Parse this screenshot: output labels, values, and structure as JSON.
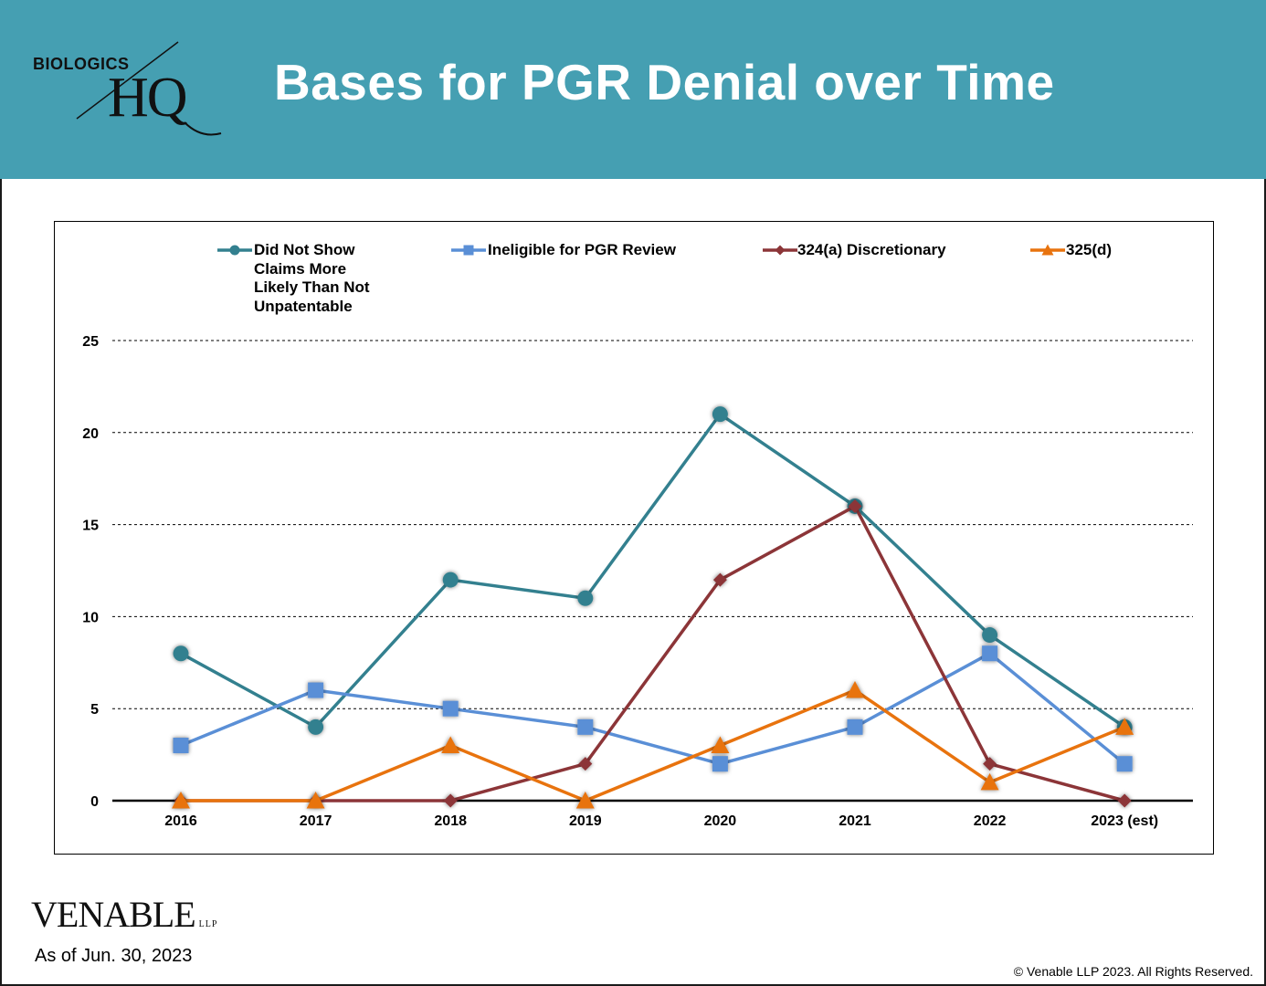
{
  "header": {
    "title": "Bases for PGR Denial over Time",
    "logo_top": "BIOLOGICS",
    "logo_bottom": "HQ",
    "background": "#459fb2"
  },
  "chart_data": {
    "type": "line",
    "categories": [
      "2016",
      "2017",
      "2018",
      "2019",
      "2020",
      "2021",
      "2022",
      "2023 (est)"
    ],
    "ylim": [
      0,
      25
    ],
    "yticks": [
      0,
      5,
      10,
      15,
      20,
      25
    ],
    "grid": true,
    "legend_position": "top",
    "series": [
      {
        "name": "Did Not Show Claims More Likely Than Not Unpatentable",
        "marker": "circle",
        "color": "#33808f",
        "values": [
          8,
          4,
          12,
          11,
          21,
          16,
          9,
          4
        ]
      },
      {
        "name": "Ineligible for PGR Review",
        "marker": "square",
        "color": "#5a8fd6",
        "values": [
          3,
          6,
          5,
          4,
          2,
          4,
          8,
          2
        ]
      },
      {
        "name": "324(a) Discretionary",
        "marker": "diamond",
        "color": "#8c3538",
        "values": [
          0,
          0,
          0,
          2,
          12,
          16,
          2,
          0
        ]
      },
      {
        "name": "325(d)",
        "marker": "triangle",
        "color": "#e8730e",
        "values": [
          0,
          0,
          3,
          0,
          3,
          6,
          1,
          4
        ]
      }
    ]
  },
  "legend": {
    "series0_lines": [
      "Did Not Show",
      "Claims More",
      "Likely Than Not",
      "Unpatentable"
    ],
    "series1": "Ineligible for PGR Review",
    "series2": "324(a) Discretionary",
    "series3": "325(d)"
  },
  "footer": {
    "brand": "VENABLE",
    "brand_suffix": "LLP",
    "as_of": "As of Jun. 30, 2023",
    "copyright": "© Venable LLP 2023. All Rights Reserved."
  }
}
